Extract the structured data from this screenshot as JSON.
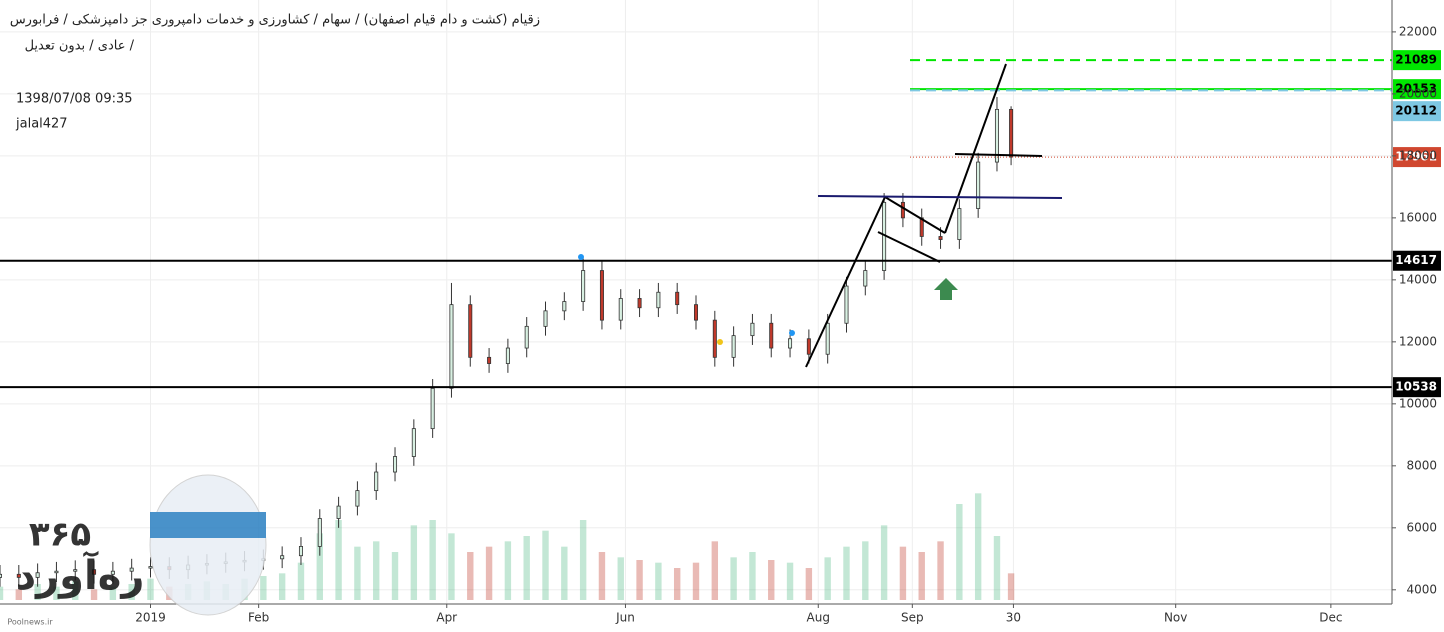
{
  "chart_data": {
    "type": "candlestick",
    "title": "زقیام (کشت و دام قیام اصفهان) / سهام / کشاورزی و خدمات دامپروری جز دامپزشکی / فرابورس",
    "subtitle": "عادی / بدون تعدیل /",
    "timestamp": "1398/07/08 09:35",
    "author": "jalal427",
    "watermark": [
      "۳۶۵",
      "ره‌آورد",
      "Poolnews.ir"
    ],
    "xlim": [
      0,
      296
    ],
    "xticks": [
      {
        "value": 32,
        "label": "2019"
      },
      {
        "value": 55,
        "label": "Feb"
      },
      {
        "value": 95,
        "label": "Apr"
      },
      {
        "value": 133,
        "label": "Jun"
      },
      {
        "value": 174,
        "label": "Aug"
      },
      {
        "value": 194,
        "label": "Sep"
      },
      {
        "value": 215.5,
        "label": "30"
      },
      {
        "value": 250,
        "label": "Nov"
      },
      {
        "value": 283,
        "label": "Dec"
      }
    ],
    "ylim": [
      3800,
      22900
    ],
    "yticks": [
      4000,
      6000,
      8000,
      10000,
      12000,
      14000,
      16000,
      18000,
      20000,
      22000
    ],
    "volume_ylim": [
      0,
      60
    ],
    "grid": true,
    "up_color": "#53b987",
    "down_color": "#c0392b",
    "series": {
      "x": [
        0,
        4,
        8,
        12,
        16,
        20,
        24,
        28,
        32,
        36,
        40,
        44,
        48,
        52,
        56,
        60,
        64,
        68,
        72,
        76,
        80,
        84,
        88,
        92,
        96,
        100,
        104,
        108,
        112,
        116,
        120,
        124,
        128,
        132,
        136,
        140,
        144,
        148,
        152,
        156,
        160,
        164,
        168,
        172,
        176,
        180,
        184,
        188,
        192,
        196,
        200,
        204,
        208,
        212,
        215
      ],
      "open": [
        4400,
        4500,
        4400,
        4550,
        4600,
        4650,
        4500,
        4600,
        4700,
        4750,
        4650,
        4800,
        4850,
        4900,
        4950,
        5000,
        5100,
        5400,
        6300,
        6700,
        7200,
        7800,
        8300,
        9200,
        10500,
        13200,
        11500,
        11300,
        11800,
        12500,
        13000,
        13300,
        14300,
        12700,
        13400,
        13100,
        13600,
        13200,
        12700,
        11500,
        12200,
        12600,
        11800,
        12100,
        11600,
        12600,
        13800,
        14300,
        16500,
        16000,
        15400,
        15300,
        16300,
        17800,
        19500
      ],
      "high": [
        4800,
        4800,
        4850,
        4900,
        4950,
        4950,
        4900,
        5000,
        5050,
        5050,
        5100,
        5150,
        5200,
        5250,
        5300,
        5400,
        5700,
        6600,
        7000,
        7500,
        8100,
        8600,
        9500,
        10800,
        13900,
        13500,
        11800,
        12100,
        12800,
        13300,
        13600,
        14700,
        14600,
        13700,
        13700,
        13900,
        13900,
        13500,
        13000,
        12500,
        12900,
        12900,
        12400,
        12400,
        12900,
        14100,
        14600,
        16800,
        16800,
        16300,
        15700,
        16600,
        18100,
        19900,
        19600
      ],
      "low": [
        4100,
        4100,
        4100,
        4250,
        4300,
        4200,
        4200,
        4300,
        4400,
        4350,
        4350,
        4500,
        4550,
        4600,
        4650,
        4700,
        4800,
        5100,
        6000,
        6400,
        6900,
        7500,
        8000,
        8900,
        10200,
        11200,
        11000,
        11000,
        11500,
        12200,
        12700,
        13000,
        12400,
        12400,
        12800,
        12800,
        12900,
        12400,
        11200,
        11200,
        11900,
        11500,
        11500,
        11300,
        11300,
        12300,
        13500,
        14000,
        15700,
        15100,
        15000,
        15000,
        16000,
        17500,
        17700
      ],
      "close": [
        4500,
        4400,
        4550,
        4600,
        4650,
        4500,
        4600,
        4700,
        4750,
        4650,
        4800,
        4850,
        4900,
        4950,
        5000,
        5100,
        5400,
        6300,
        6700,
        7200,
        7800,
        8300,
        9200,
        10500,
        13200,
        11500,
        11300,
        11800,
        12500,
        13000,
        13300,
        14300,
        12700,
        13400,
        13100,
        13600,
        13200,
        12700,
        11500,
        12200,
        12600,
        11800,
        12100,
        11600,
        12600,
        13800,
        14300,
        16500,
        16000,
        15400,
        15300,
        16300,
        17800,
        19500,
        17961
      ],
      "volume": [
        5,
        4,
        6,
        5,
        7,
        4,
        5,
        6,
        8,
        5,
        6,
        7,
        6,
        8,
        9,
        10,
        14,
        25,
        30,
        20,
        22,
        18,
        28,
        30,
        25,
        18,
        20,
        22,
        24,
        26,
        20,
        30,
        18,
        16,
        15,
        14,
        12,
        14,
        22,
        16,
        18,
        15,
        14,
        12,
        16,
        20,
        22,
        28,
        20,
        18,
        22,
        36,
        40,
        24,
        10
      ]
    },
    "levels": [
      {
        "value": 21089,
        "color": "#00e600",
        "dash": true
      },
      {
        "value": 20153,
        "color": "#00e600",
        "dash": false
      },
      {
        "value": 20112,
        "color": "#7ec8e3",
        "dash": true
      },
      {
        "value": 17961,
        "color": "#d0472f",
        "dash": true
      },
      {
        "value": 14617,
        "color": "#000000",
        "dash": false
      },
      {
        "value": 10538,
        "color": "#000000",
        "dash": false
      }
    ]
  }
}
